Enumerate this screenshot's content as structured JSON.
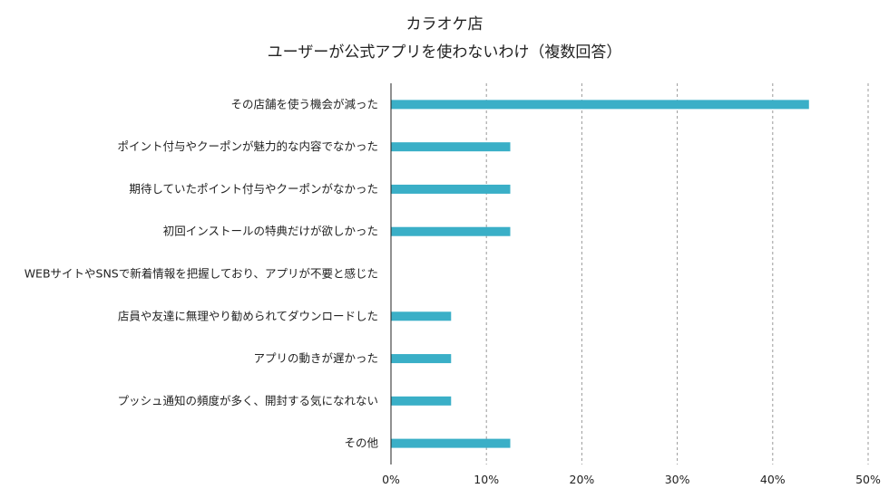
{
  "chart_data": {
    "type": "bar",
    "orientation": "horizontal",
    "title": "カラオケ店",
    "subtitle": "ユーザーが公式アプリを使わないわけ（複数回答）",
    "categories": [
      "その店舗を使う機会が減った",
      "ポイント付与やクーポンが魅力的な内容でなかった",
      "期待していたポイント付与やクーポンがなかった",
      "初回インストールの特典だけが欲しかった",
      "WEBサイトやSNSで新着情報を把握しており、アプリが不要と感じた",
      "店員や友達に無理やり勧められてダウンロードした",
      "アプリの動きが遅かった",
      "プッシュ通知の頻度が多く、開封する気になれない",
      "その他"
    ],
    "values": [
      43.8,
      12.5,
      12.5,
      12.5,
      0,
      6.3,
      6.3,
      6.3,
      12.5
    ],
    "xlim": [
      0,
      50
    ],
    "xticks": [
      "0%",
      "10%",
      "20%",
      "30%",
      "40%",
      "50%"
    ],
    "grid": "vertical dashed",
    "bar_color": "#3aafc7",
    "grid_color": "#9a9a9a",
    "axis_color": "#222222"
  }
}
